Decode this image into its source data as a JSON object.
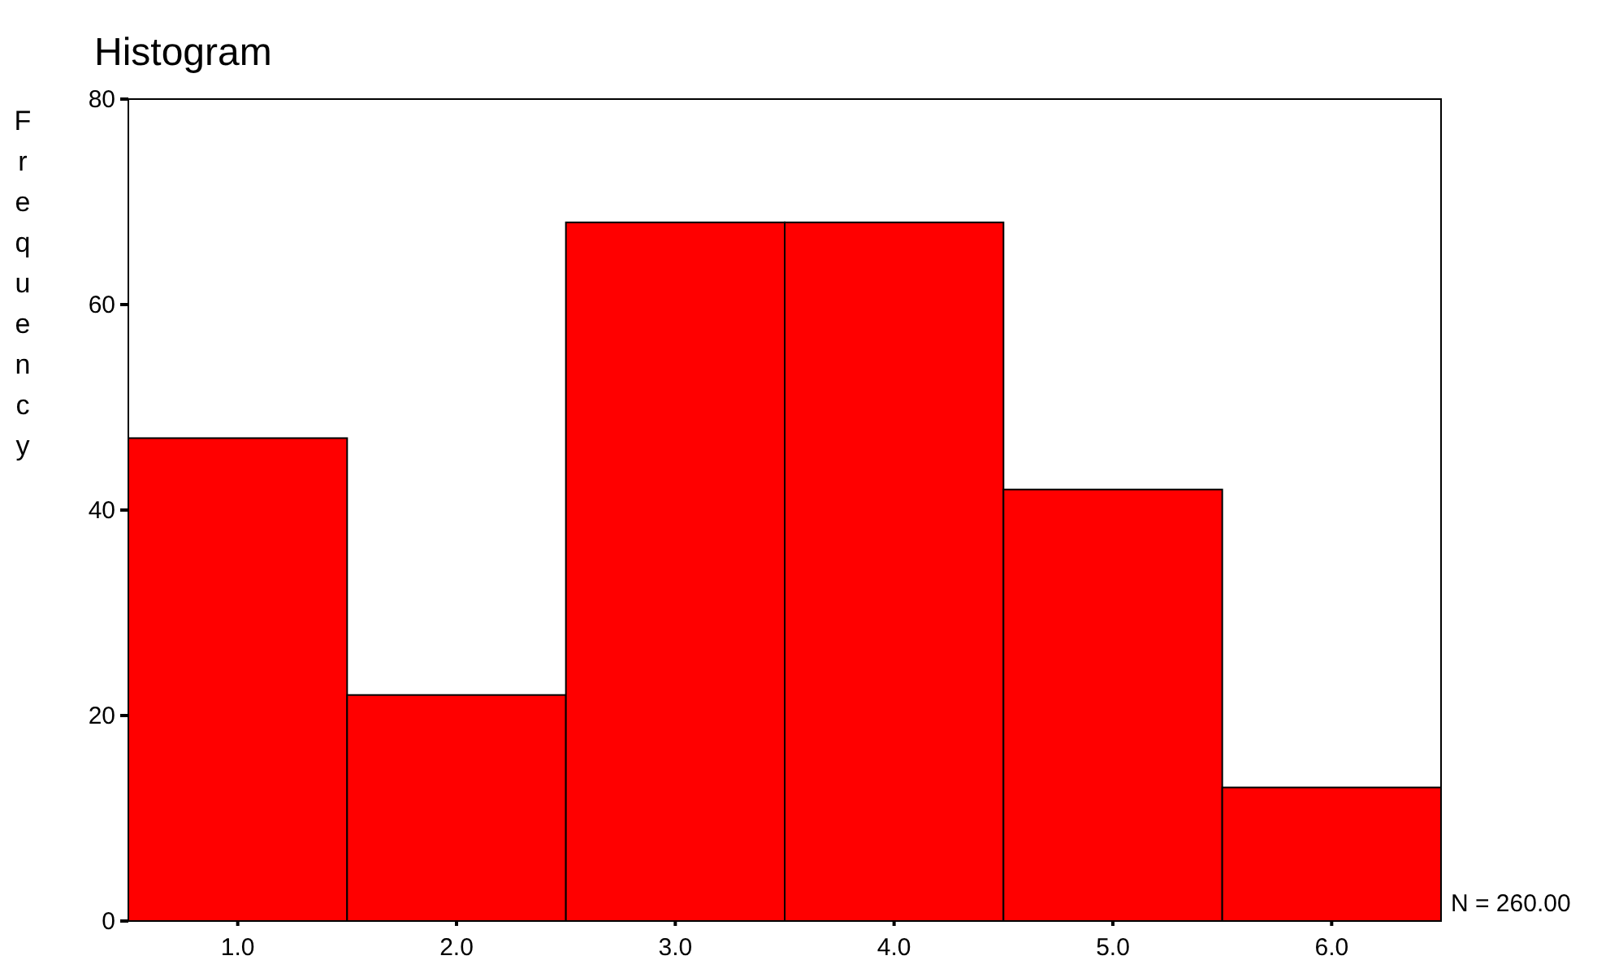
{
  "chart_data": {
    "type": "histogram",
    "title": "Histogram",
    "ylabel": "Frequency",
    "bins": [
      0.5,
      1.5,
      2.5,
      3.5,
      4.5,
      5.5,
      6.5
    ],
    "values": [
      47,
      22,
      68,
      68,
      42,
      13
    ],
    "color": "#ff0000",
    "xlim": [
      0.5,
      6.5
    ],
    "xticks": [
      {
        "value": 1,
        "label": "1.0"
      },
      {
        "value": 2,
        "label": "2.0"
      },
      {
        "value": 3,
        "label": "3.0"
      },
      {
        "value": 4,
        "label": "4.0"
      },
      {
        "value": 5,
        "label": "5.0"
      },
      {
        "value": 6,
        "label": "6.0"
      }
    ],
    "ylim": [
      0,
      80
    ],
    "yticks": [
      0,
      20,
      40,
      60,
      80
    ],
    "annotations": [
      "N = 260.00"
    ]
  }
}
